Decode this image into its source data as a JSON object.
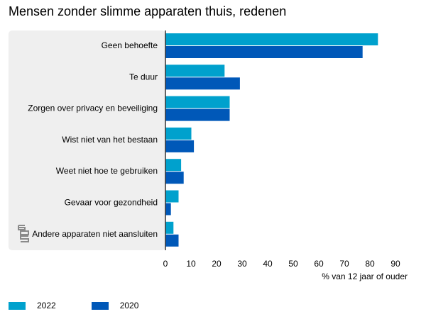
{
  "title": "Mensen zonder slimme apparaten thuis, redenen",
  "colors": {
    "series_2022": "#00a1cd",
    "series_2020": "#0058b8",
    "panel": "#efefef",
    "axis": "#333333"
  },
  "logo_icon": "cbs-logo-icon",
  "chart_data": {
    "type": "bar",
    "orientation": "horizontal",
    "title": "Mensen zonder slimme apparaten thuis, redenen",
    "xlabel": "% van 12 jaar of ouder",
    "ylabel": "",
    "xlim": [
      0,
      90
    ],
    "xticks": [
      0,
      10,
      20,
      30,
      40,
      50,
      60,
      70,
      80,
      90
    ],
    "xtick_labels": [
      "0",
      "10",
      "20",
      "30",
      "40",
      "50",
      "60",
      "70",
      "80",
      "90"
    ],
    "categories": [
      "Geen behoefte",
      "Te duur",
      "Zorgen over privacy en beveiliging",
      "Wist niet van het bestaan",
      "Weet niet hoe te gebruiken",
      "Gevaar voor gezondheid",
      "Andere apparaten niet aansluiten"
    ],
    "series": [
      {
        "name": "2022",
        "color": "#00a1cd",
        "values": [
          83,
          23,
          25,
          10,
          6,
          5,
          3
        ]
      },
      {
        "name": "2020",
        "color": "#0058b8",
        "values": [
          77,
          29,
          25,
          11,
          7,
          2,
          5
        ]
      }
    ],
    "grid": false,
    "legend": "bottom-left"
  }
}
